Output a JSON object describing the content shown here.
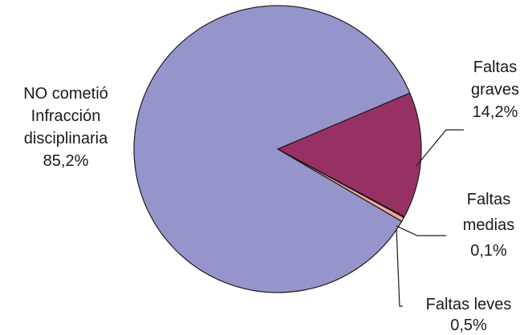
{
  "chart_data": {
    "type": "pie",
    "slices": [
      {
        "label": [
          "NO cometió",
          "Infracción",
          "disciplinaria"
        ],
        "value": 85.2,
        "value_label": "85,2%",
        "color": "#9594cb"
      },
      {
        "label": [
          "Faltas",
          "graves"
        ],
        "value": 14.2,
        "value_label": "14,2%",
        "color": "#983163"
      },
      {
        "label": [
          "Faltas",
          "medias"
        ],
        "value": 0.1,
        "value_label": "0,1%",
        "color": "#7f2a52"
      },
      {
        "label": [
          "Faltas leves"
        ],
        "value": 0.5,
        "value_label": "0,5%",
        "color": "#f4a7a0"
      }
    ]
  }
}
